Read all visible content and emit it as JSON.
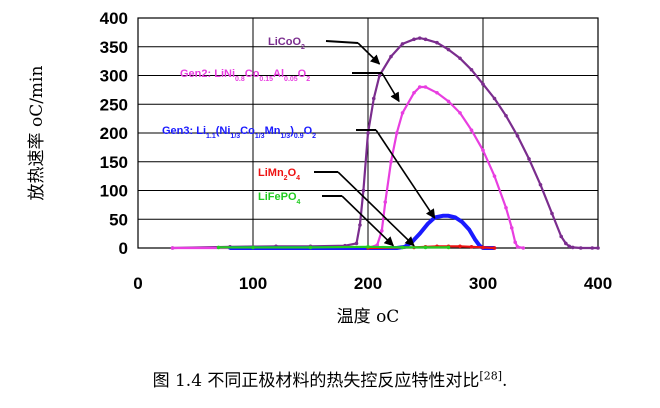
{
  "chart_data": {
    "type": "line",
    "xlabel": "温度 oC",
    "ylabel": "放热速率 oC/min",
    "xlim": [
      0,
      400
    ],
    "ylim": [
      0,
      400
    ],
    "x_ticks": [
      0,
      100,
      200,
      300,
      400
    ],
    "y_ticks": [
      0,
      50,
      100,
      150,
      200,
      250,
      300,
      350,
      400
    ],
    "grid": true,
    "series": [
      {
        "name": "LiCoO2",
        "color": "#7b2d8e",
        "x": [
          30,
          80,
          120,
          150,
          180,
          190,
          193,
          196,
          200,
          205,
          210,
          220,
          230,
          240,
          245,
          250,
          260,
          270,
          280,
          290,
          300,
          310,
          320,
          330,
          340,
          350,
          360,
          368,
          372,
          375,
          378,
          385,
          395,
          400
        ],
        "y": [
          0,
          2,
          3,
          3,
          4,
          8,
          40,
          100,
          200,
          260,
          300,
          333,
          355,
          363,
          365,
          363,
          357,
          345,
          330,
          310,
          285,
          260,
          230,
          195,
          155,
          110,
          60,
          20,
          8,
          3,
          1,
          0,
          0,
          0
        ]
      },
      {
        "name": "Gen2: LiNi0.8Co0.15Al0.05O2",
        "color": "#e83ee0",
        "x": [
          30,
          80,
          150,
          200,
          208,
          212,
          215,
          220,
          225,
          230,
          240,
          245,
          250,
          260,
          270,
          280,
          290,
          300,
          310,
          320,
          325,
          328,
          330,
          335
        ],
        "y": [
          0,
          0,
          0,
          0,
          5,
          30,
          80,
          150,
          200,
          235,
          270,
          280,
          280,
          270,
          255,
          235,
          205,
          170,
          125,
          70,
          35,
          10,
          2,
          0
        ]
      },
      {
        "name": "Gen3: Li1.1(Ni1/3Co1/3Mn1/3)0.9O2",
        "color": "#1a1aff",
        "x": [
          80,
          200,
          225,
          232,
          238,
          245,
          252,
          258,
          265,
          270,
          276,
          282,
          288,
          293,
          297,
          300,
          310
        ],
        "y": [
          0,
          0,
          0,
          2,
          10,
          25,
          42,
          53,
          56,
          56,
          53,
          45,
          32,
          15,
          4,
          0,
          0
        ]
      },
      {
        "name": "LiMn2O4",
        "color": "#ee1111",
        "x": [
          200,
          240,
          250,
          260,
          270,
          280,
          290,
          300,
          310
        ],
        "y": [
          0,
          1,
          2,
          3,
          3,
          3,
          2,
          1,
          0
        ]
      },
      {
        "name": "LiFePO4",
        "color": "#22cc22",
        "x": [
          70,
          100,
          150,
          200,
          230,
          250,
          270
        ],
        "y": [
          1,
          1,
          1,
          2,
          1,
          1,
          1
        ]
      }
    ],
    "annotations": [
      {
        "key": "licoo2",
        "parts": [
          "LiCoO",
          {
            "sub": "2"
          }
        ],
        "color": "#7b2d8e",
        "arrow_to": [
          210,
          320
        ]
      },
      {
        "key": "gen2",
        "parts": [
          "Gen2: LiNi",
          {
            "sub": "0.8"
          },
          "Co",
          {
            "sub": "0.15"
          },
          "Al",
          {
            "sub": "0.05"
          },
          "O",
          {
            "sub": "2"
          }
        ],
        "color": "#e83ee0",
        "arrow_to": [
          227,
          255
        ]
      },
      {
        "key": "gen3",
        "parts": [
          "Gen3: Li",
          {
            "sub": "1.1"
          },
          "(Ni",
          {
            "sub": "1/3"
          },
          "Co",
          {
            "sub": "1/3"
          },
          "Mn",
          {
            "sub": "1/3"
          },
          ")",
          {
            "sub": "0.9"
          },
          "O",
          {
            "sub": "2"
          }
        ],
        "color": "#1a1aff",
        "arrow_to": [
          258,
          52
        ]
      },
      {
        "key": "limn2o4",
        "parts": [
          "LiMn",
          {
            "sub": "2"
          },
          "O",
          {
            "sub": "4"
          }
        ],
        "color": "#ee1111",
        "arrow_to": [
          240,
          4
        ]
      },
      {
        "key": "lifepo4",
        "parts": [
          "LiFePO",
          {
            "sub": "4"
          }
        ],
        "color": "#22cc22",
        "arrow_to": [
          222,
          4
        ]
      }
    ]
  },
  "caption": {
    "text": "图 1.4  不同正极材料的热失控反应特性对比",
    "ref": "[28]",
    "end": "."
  }
}
